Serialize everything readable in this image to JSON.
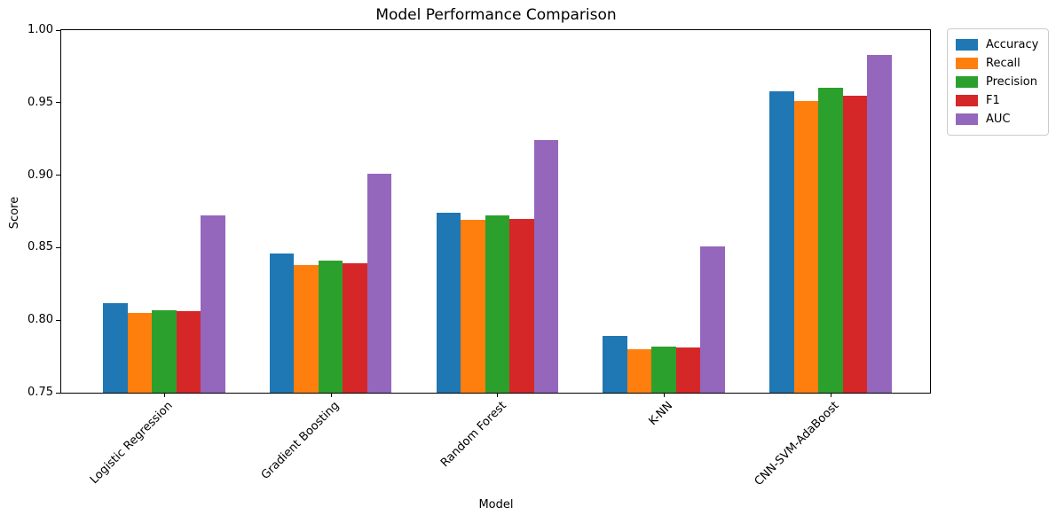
{
  "chart_data": {
    "type": "bar",
    "title": "Model Performance Comparison",
    "xlabel": "Model",
    "ylabel": "Score",
    "ylim": [
      0.75,
      1.0
    ],
    "yticks": [
      "0.75",
      "0.80",
      "0.85",
      "0.90",
      "0.95",
      "1.00"
    ],
    "grid": false,
    "legend_position": "upper-right-outside",
    "categories": [
      "Logistic Regression",
      "Gradient Boosting",
      "Random Forest",
      "K-NN",
      "CNN-SVM-AdaBoost"
    ],
    "series": [
      {
        "name": "Accuracy",
        "color": "#1f77b4",
        "values": [
          0.812,
          0.846,
          0.874,
          0.789,
          0.958
        ]
      },
      {
        "name": "Recall",
        "color": "#ff7f0e",
        "values": [
          0.805,
          0.838,
          0.869,
          0.78,
          0.951
        ]
      },
      {
        "name": "Precision",
        "color": "#2ca02c",
        "values": [
          0.807,
          0.841,
          0.872,
          0.782,
          0.96
        ]
      },
      {
        "name": "F1",
        "color": "#d62728",
        "values": [
          0.806,
          0.839,
          0.87,
          0.781,
          0.955
        ]
      },
      {
        "name": "AUC",
        "color": "#9467bd",
        "values": [
          0.872,
          0.901,
          0.924,
          0.851,
          0.983
        ]
      }
    ]
  }
}
